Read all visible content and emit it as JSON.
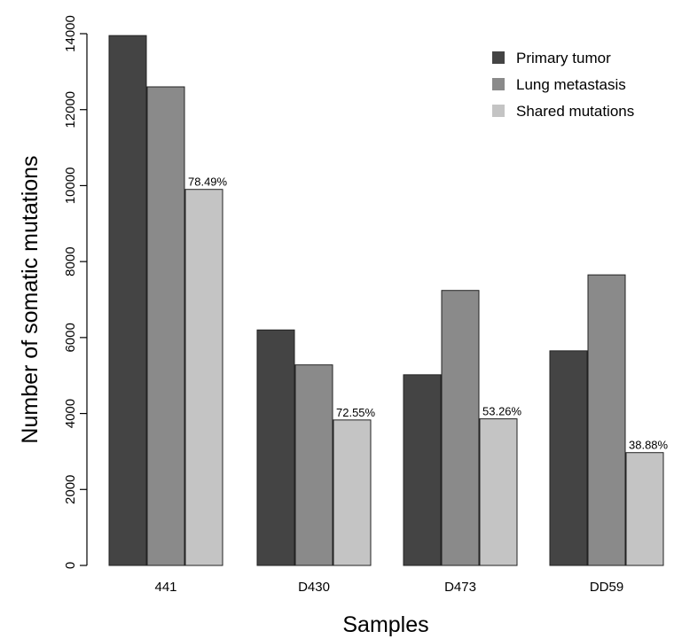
{
  "chart_data": {
    "type": "bar",
    "title": "",
    "xlabel": "Samples",
    "ylabel": "Number of somatic mutations",
    "categories": [
      "441",
      "D430",
      "D473",
      "DD59"
    ],
    "series": [
      {
        "name": "Primary tumor",
        "color": "#444444",
        "values": [
          13950,
          6200,
          5020,
          5650
        ]
      },
      {
        "name": "Lung metastasis",
        "color": "#8a8a8a",
        "values": [
          12600,
          5280,
          7240,
          7650
        ]
      },
      {
        "name": "Shared mutations",
        "color": "#c4c4c4",
        "values": [
          9900,
          3830,
          3860,
          2970
        ]
      }
    ],
    "data_labels": [
      "78.49%",
      "72.55%",
      "53.26%",
      "38.88%"
    ],
    "data_label_series": "Shared mutations",
    "yticks": [
      0,
      2000,
      4000,
      6000,
      8000,
      10000,
      12000,
      14000
    ],
    "ylim": [
      0,
      14000
    ],
    "grid": false,
    "legend_position": "top-right"
  }
}
